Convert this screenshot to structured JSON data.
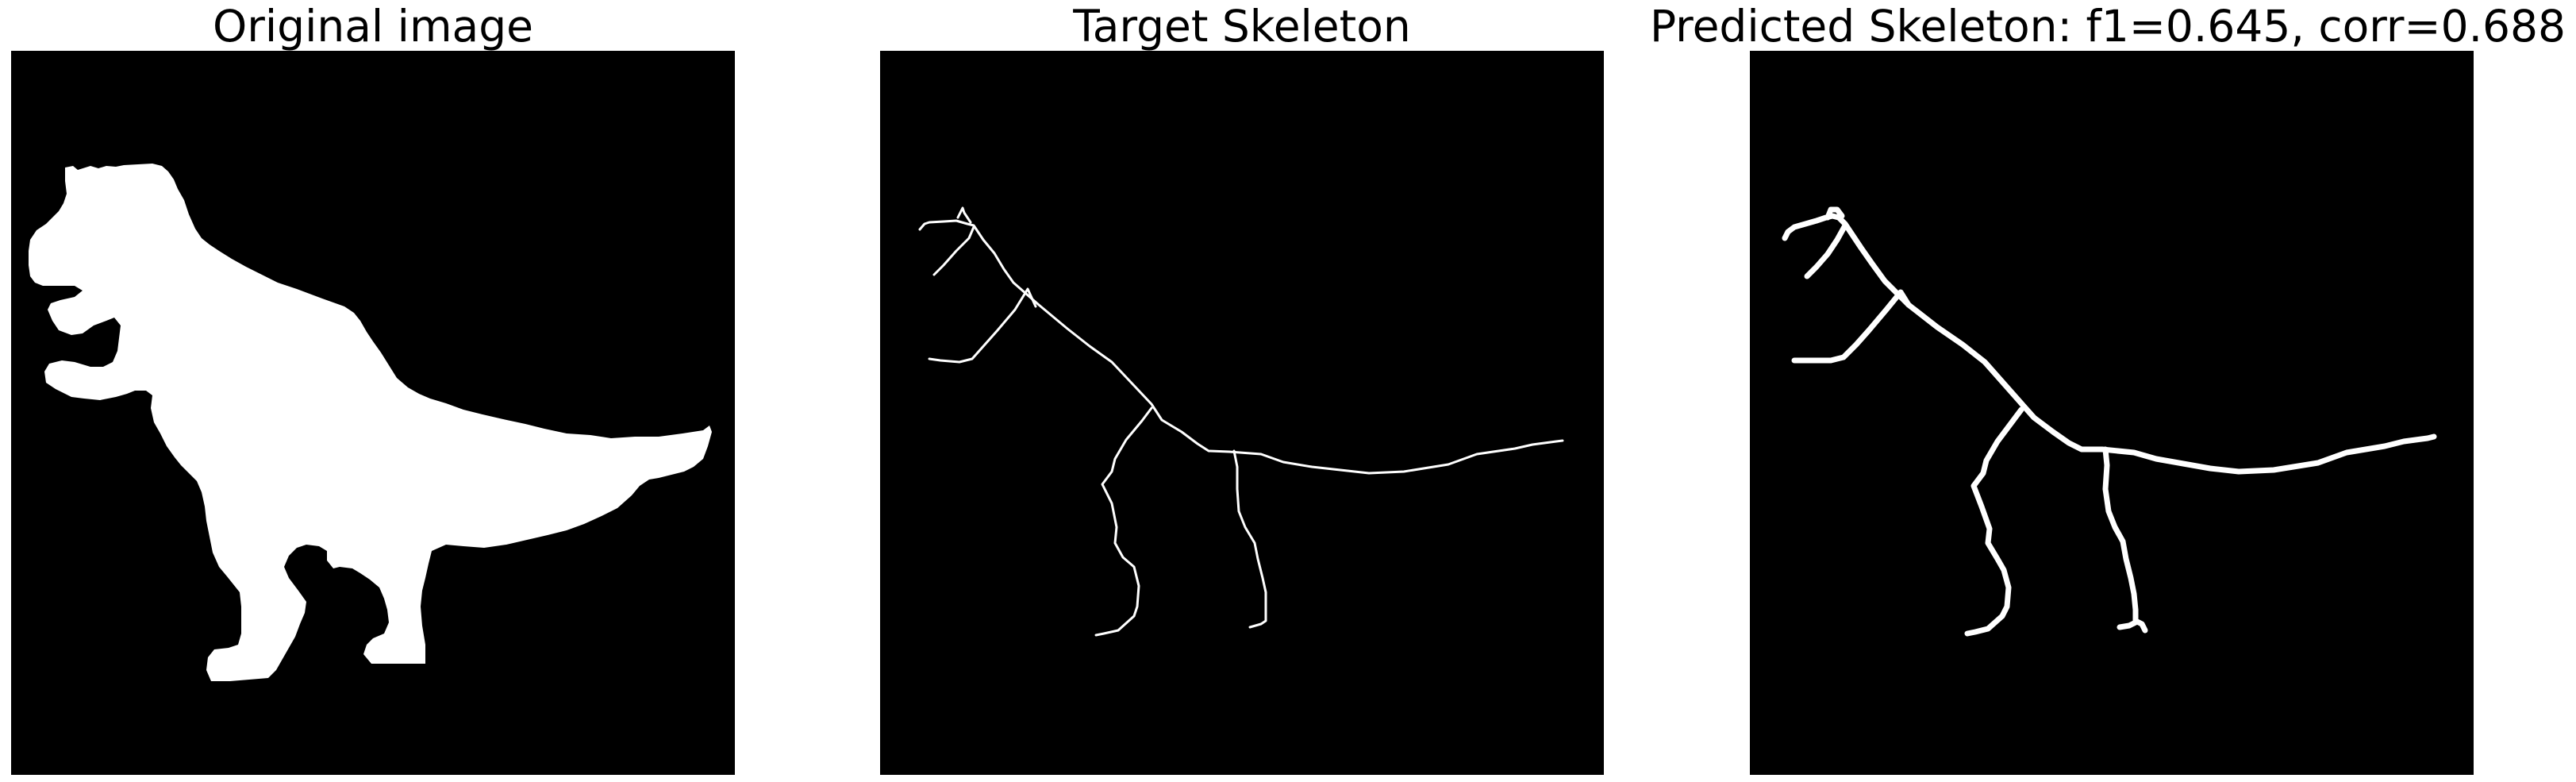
{
  "panels": [
    {
      "title": "Original image",
      "content": "dinosaur-silhouette-mask"
    },
    {
      "title": "Target Skeleton",
      "content": "target-skeleton-lines"
    },
    {
      "title": "Predicted Skeleton: f1=0.645, corr=0.688",
      "content": "predicted-skeleton-lines"
    }
  ],
  "colors": {
    "background": "#000000",
    "foreground": "#ffffff",
    "page": "#ffffff"
  }
}
